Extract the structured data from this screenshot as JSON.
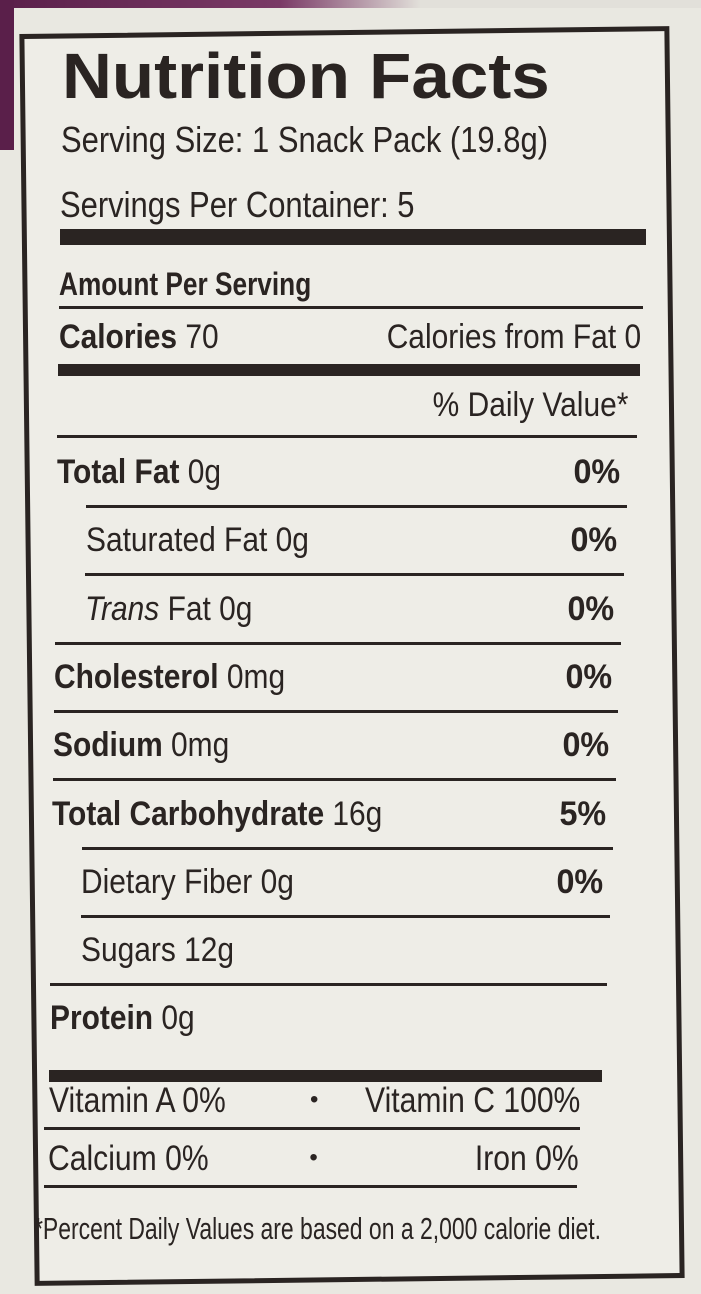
{
  "header": {
    "title": "Nutrition Facts",
    "serving_size": "Serving Size: 1 Snack Pack (19.8g)",
    "servings_per_container": "Servings Per Container: 5"
  },
  "amount_per_serving": "Amount Per Serving",
  "calories": {
    "label": "Calories",
    "amount": "70",
    "from_fat": "Calories from Fat 0"
  },
  "daily_value_header": "% Daily Value*",
  "nutrients": [
    {
      "name": "Total Fat",
      "amount": "0g",
      "dv": "0%",
      "bold": true,
      "indent": false
    },
    {
      "name": "Saturated Fat",
      "amount": "0g",
      "dv": "0%",
      "bold": false,
      "indent": true
    },
    {
      "name_italic": "Trans",
      "name": "Fat",
      "amount": "0g",
      "dv": "0%",
      "bold": false,
      "indent": true
    },
    {
      "name": "Cholesterol",
      "amount": "0mg",
      "dv": "0%",
      "bold": true,
      "indent": false
    },
    {
      "name": "Sodium",
      "amount": "0mg",
      "dv": "0%",
      "bold": true,
      "indent": false
    },
    {
      "name": "Total Carbohydrate",
      "amount": "16g",
      "dv": "5%",
      "bold": true,
      "indent": false
    },
    {
      "name": "Dietary Fiber",
      "amount": "0g",
      "dv": "0%",
      "bold": false,
      "indent": true
    },
    {
      "name": "Sugars",
      "amount": "12g",
      "bold": false,
      "indent": true
    },
    {
      "name": "Protein",
      "amount": "0g",
      "bold": true,
      "indent": false
    }
  ],
  "vitamins": {
    "separator": "•",
    "rows": [
      [
        "Vitamin  A 0%",
        "Vitamin C 100%"
      ],
      [
        "Calcium 0%",
        "Iron 0%"
      ]
    ]
  },
  "footnote": "*Percent Daily Values are based on a 2,000 calorie diet."
}
